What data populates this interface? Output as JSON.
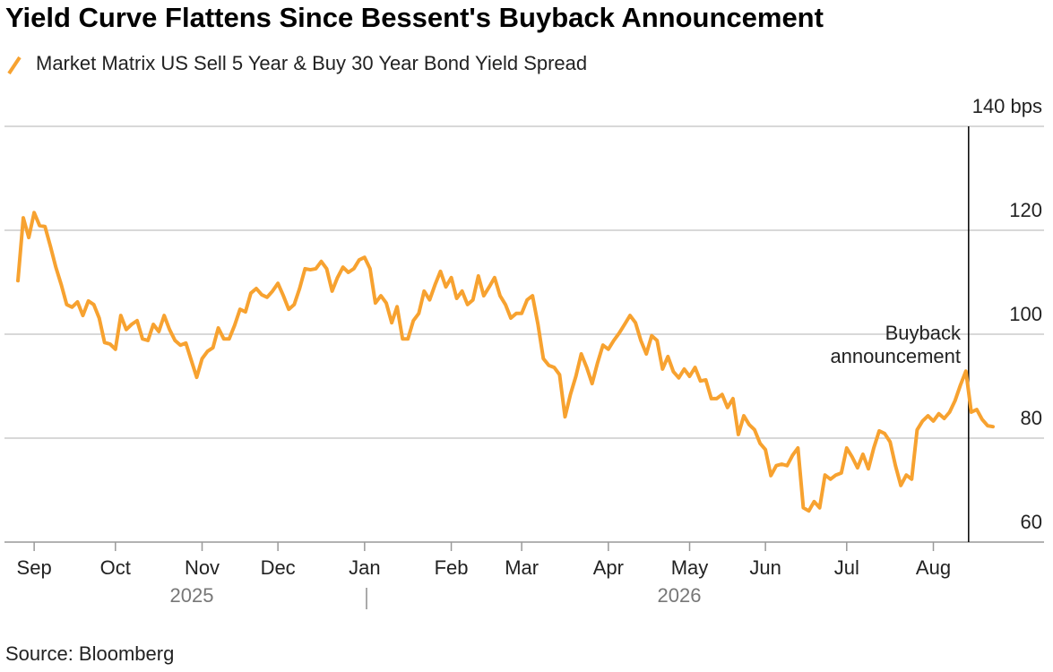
{
  "chart_data": {
    "type": "line",
    "title": "Yield Curve Flattens Since Bessent's Buyback Announcement",
    "source": "Source: Bloomberg",
    "annotation": [
      "Buyback",
      "announcement"
    ],
    "year_labels": [
      "2025",
      "2026"
    ],
    "ylim": [
      60,
      140
    ],
    "yticks": [
      60,
      80,
      100,
      120,
      {
        "value": 140,
        "label": "140 bps"
      }
    ],
    "grid": true,
    "categories": [
      null,
      null,
      null,
      "Sep",
      null,
      null,
      null,
      null,
      null,
      null,
      null,
      null,
      null,
      null,
      null,
      null,
      null,
      null,
      "Oct",
      null,
      null,
      null,
      null,
      null,
      null,
      null,
      null,
      null,
      null,
      null,
      null,
      null,
      null,
      null,
      "Nov",
      null,
      null,
      null,
      null,
      null,
      null,
      null,
      null,
      null,
      null,
      null,
      null,
      null,
      "Dec",
      null,
      null,
      null,
      null,
      null,
      null,
      null,
      null,
      null,
      null,
      null,
      null,
      null,
      null,
      null,
      "Jan",
      null,
      null,
      null,
      null,
      null,
      null,
      null,
      null,
      null,
      null,
      null,
      null,
      null,
      null,
      null,
      "Feb",
      null,
      null,
      null,
      null,
      null,
      null,
      null,
      null,
      null,
      null,
      null,
      null,
      "Mar",
      null,
      null,
      null,
      null,
      null,
      null,
      null,
      null,
      null,
      null,
      null,
      null,
      null,
      null,
      null,
      "Apr",
      null,
      null,
      null,
      null,
      null,
      null,
      null,
      null,
      null,
      null,
      null,
      null,
      null,
      null,
      "May",
      null,
      null,
      null,
      null,
      null,
      null,
      null,
      null,
      null,
      null,
      null,
      null,
      null,
      "Jun",
      null,
      null,
      null,
      null,
      null,
      null,
      null,
      null,
      null,
      null,
      null,
      null,
      null,
      null,
      "Jul",
      null,
      null,
      null,
      null,
      null,
      null,
      null,
      null,
      null,
      null,
      null,
      null,
      null,
      null,
      null,
      "Aug",
      null,
      null,
      null,
      null,
      null,
      null,
      null,
      null,
      null,
      null,
      null
    ],
    "series": [
      {
        "name": "Market Matrix US Sell 5 Year & Buy 30 Year Bond Yield Spread",
        "color": "#f7a230",
        "values": [
          110.3,
          122.4,
          118.6,
          123.4,
          120.9,
          120.7,
          116.9,
          112.9,
          109.5,
          105.7,
          105.2,
          106.2,
          103.6,
          106.4,
          105.7,
          103.1,
          98.4,
          98.1,
          97.1,
          103.6,
          100.9,
          101.9,
          102.6,
          99.1,
          98.8,
          101.9,
          100.5,
          103.6,
          100.9,
          98.8,
          97.9,
          98.3,
          95.0,
          91.7,
          95.3,
          96.7,
          97.4,
          101.2,
          99.1,
          99.1,
          101.7,
          104.8,
          104.3,
          107.9,
          108.8,
          107.6,
          107.1,
          108.3,
          109.8,
          107.4,
          104.8,
          105.7,
          108.8,
          112.6,
          112.4,
          112.6,
          114.0,
          112.6,
          108.3,
          110.9,
          112.9,
          111.9,
          112.6,
          114.3,
          114.8,
          112.6,
          106.0,
          107.4,
          106.0,
          102.2,
          105.3,
          99.1,
          99.1,
          102.6,
          104.0,
          108.3,
          106.6,
          109.5,
          112.1,
          109.1,
          110.9,
          106.9,
          108.3,
          105.7,
          106.6,
          111.2,
          107.4,
          109.1,
          110.9,
          107.4,
          105.7,
          103.1,
          104.0,
          104.0,
          106.6,
          107.4,
          101.9,
          95.3,
          94.0,
          93.6,
          92.2,
          84.1,
          88.4,
          91.9,
          96.2,
          93.6,
          90.5,
          94.5,
          97.9,
          97.1,
          98.8,
          100.2,
          101.9,
          103.6,
          102.2,
          98.8,
          96.2,
          99.7,
          98.8,
          93.3,
          95.7,
          92.8,
          91.6,
          93.3,
          91.9,
          93.6,
          91.0,
          91.2,
          87.6,
          87.6,
          88.4,
          85.9,
          87.6,
          80.7,
          84.3,
          82.6,
          81.6,
          79.0,
          77.8,
          72.8,
          74.7,
          75.0,
          74.7,
          76.7,
          78.1,
          66.6,
          66.0,
          67.8,
          66.6,
          72.9,
          72.1,
          72.9,
          73.3,
          78.1,
          76.4,
          74.3,
          76.9,
          74.1,
          78.1,
          81.4,
          80.9,
          79.3,
          74.7,
          70.9,
          72.9,
          72.1,
          81.6,
          83.3,
          84.3,
          83.3,
          84.7,
          83.8,
          85.0,
          87.2,
          90.2,
          92.9,
          85.0,
          85.5,
          83.6,
          82.4,
          82.2
        ]
      }
    ]
  }
}
